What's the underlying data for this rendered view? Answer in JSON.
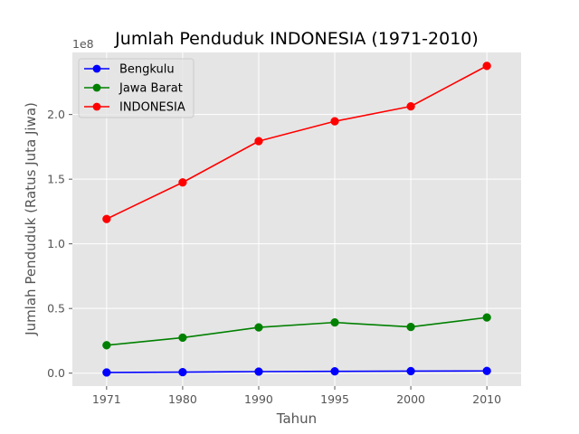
{
  "chart_data": {
    "type": "line",
    "title": "Jumlah Penduduk INDONESIA (1971-2010)",
    "xlabel": "Tahun",
    "ylabel": "Jumlah Penduduk (Ratus Juta Jiwa)",
    "y_offset_label": "1e8",
    "categories": [
      "1971",
      "1980",
      "1990",
      "1995",
      "2000",
      "2010"
    ],
    "ylim": [
      -10000000,
      248000000
    ],
    "yticks": [
      0,
      50000000,
      100000000,
      150000000,
      200000000
    ],
    "ytick_labels": [
      "0.0",
      "0.5",
      "1.0",
      "1.5",
      "2.0"
    ],
    "grid": true,
    "legend_position": "top-left",
    "series": [
      {
        "name": "Bengkulu",
        "color": "#0000ff",
        "values": [
          519000,
          768000,
          1179000,
          1409000,
          1568000,
          1716000
        ]
      },
      {
        "name": "Jawa Barat",
        "color": "#008000",
        "values": [
          21600000,
          27450000,
          35380000,
          39210000,
          35730000,
          43050000
        ]
      },
      {
        "name": "INDONESIA",
        "color": "#ff0000",
        "values": [
          119200000,
          147500000,
          179400000,
          194750000,
          206300000,
          237600000
        ]
      }
    ]
  }
}
